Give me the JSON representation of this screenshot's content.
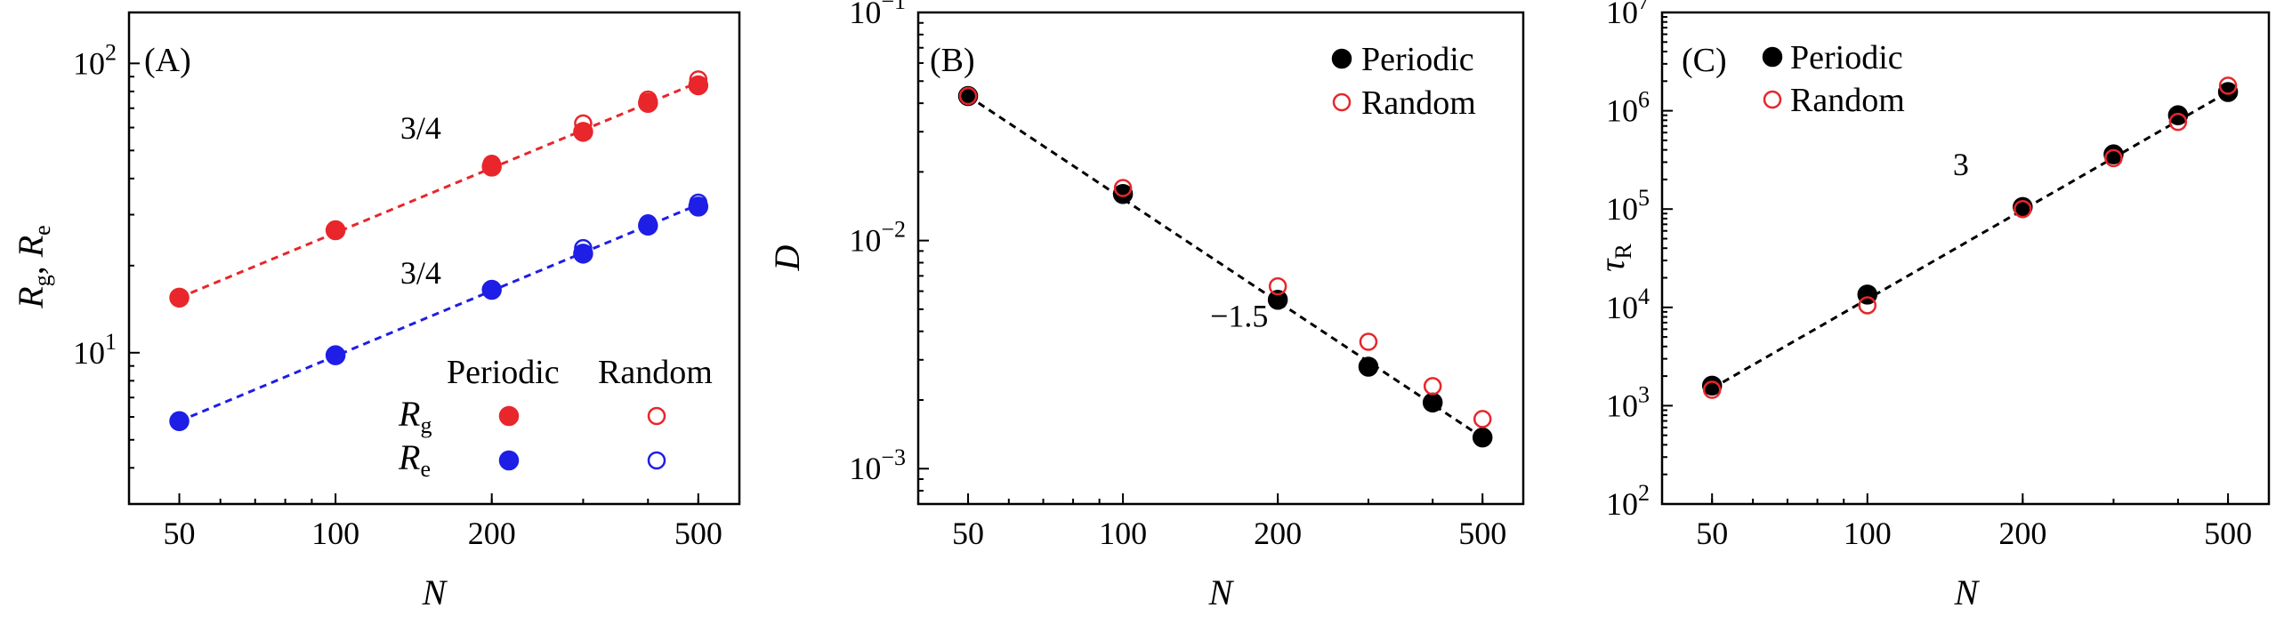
{
  "colors": {
    "red": "#e8262b",
    "blue": "#1e1ee6",
    "black": "#000000"
  },
  "chart_data": [
    {
      "type": "scatter",
      "panel_label": "(A)",
      "xlabel": "N",
      "ylabel_main": "R",
      "ylabel_sub1": "g",
      "ylabel_sep": ", ",
      "ylabel_sub2": "e",
      "xscale": "log",
      "yscale": "log",
      "xlim": [
        40,
        600
      ],
      "ylim": [
        3,
        150
      ],
      "xticks": [
        {
          "v": 50,
          "label": "50"
        },
        {
          "v": 100,
          "label": "100"
        },
        {
          "v": 200,
          "label": "200"
        },
        {
          "v": 500,
          "label": "500"
        }
      ],
      "yticks": [
        {
          "v": 10,
          "base": "10",
          "exp": "1"
        },
        {
          "v": 100,
          "base": "10",
          "exp": "2"
        }
      ],
      "legend": {
        "col_periodic": "Periodic",
        "col_random": "Random",
        "row1_main": "R",
        "row1_sub": "g",
        "row2_main": "R",
        "row2_sub": "e"
      },
      "annotations": [
        {
          "text": "3/4",
          "x": 150,
          "y": 53
        },
        {
          "text": "3/4",
          "x": 150,
          "y": 18.6
        }
      ],
      "fit_lines": [
        {
          "color": "red",
          "x": [
            50,
            500
          ],
          "y": [
            15.5,
            86
          ]
        },
        {
          "color": "blue",
          "x": [
            50,
            500
          ],
          "y": [
            5.8,
            32.5
          ]
        }
      ],
      "series": [
        {
          "name": "Rg Periodic",
          "color": "red",
          "filled": true,
          "x": [
            50,
            100,
            200,
            300,
            400,
            500
          ],
          "y": [
            15.5,
            26.5,
            44,
            58,
            73,
            84
          ]
        },
        {
          "name": "Rg Random",
          "color": "red",
          "filled": false,
          "x": [
            50,
            100,
            200,
            300,
            400,
            500
          ],
          "y": [
            15.5,
            26.5,
            45,
            62,
            75,
            88
          ]
        },
        {
          "name": "Re Periodic",
          "color": "blue",
          "filled": true,
          "x": [
            50,
            100,
            200,
            300,
            400,
            500
          ],
          "y": [
            5.8,
            9.8,
            16.5,
            22,
            27.5,
            32
          ]
        },
        {
          "name": "Re Random",
          "color": "blue",
          "filled": false,
          "x": [
            50,
            100,
            200,
            300,
            400,
            500
          ],
          "y": [
            5.8,
            9.8,
            16.5,
            23,
            28,
            33
          ]
        }
      ]
    },
    {
      "type": "scatter",
      "panel_label": "(B)",
      "xlabel": "N",
      "ylabel_main": "D",
      "xscale": "log",
      "yscale": "log",
      "xlim": [
        40,
        600
      ],
      "ylim": [
        0.0007,
        0.1
      ],
      "xticks": [
        {
          "v": 50,
          "label": "50"
        },
        {
          "v": 100,
          "label": "100"
        },
        {
          "v": 200,
          "label": "200"
        },
        {
          "v": 500,
          "label": "500"
        }
      ],
      "yticks": [
        {
          "v": 0.001,
          "base": "10",
          "exp": "−3"
        },
        {
          "v": 0.01,
          "base": "10",
          "exp": "−2"
        },
        {
          "v": 0.1,
          "base": "10",
          "exp": "−1"
        }
      ],
      "legend": {
        "periodic": "Periodic",
        "random": "Random"
      },
      "annotations": [
        {
          "text": "−1.5",
          "x": 160,
          "y": 0.0042
        }
      ],
      "fit_lines": [
        {
          "color": "black",
          "x": [
            50,
            500
          ],
          "y": [
            0.043,
            0.00137
          ]
        }
      ],
      "series": [
        {
          "name": "Periodic",
          "color": "black",
          "filled": true,
          "x": [
            50,
            100,
            200,
            300,
            400,
            500
          ],
          "y": [
            0.043,
            0.016,
            0.0055,
            0.0028,
            0.00195,
            0.00137
          ]
        },
        {
          "name": "Random",
          "color": "red",
          "filled": false,
          "x": [
            50,
            100,
            200,
            300,
            400,
            500
          ],
          "y": [
            0.043,
            0.017,
            0.0063,
            0.0036,
            0.0023,
            0.00165
          ]
        }
      ]
    },
    {
      "type": "scatter",
      "panel_label": "(C)",
      "xlabel": "N",
      "ylabel_main": "τ",
      "ylabel_sub1": "R",
      "xscale": "log",
      "yscale": "log",
      "xlim": [
        40,
        600
      ],
      "ylim": [
        100,
        10000000
      ],
      "xticks": [
        {
          "v": 50,
          "label": "50"
        },
        {
          "v": 100,
          "label": "100"
        },
        {
          "v": 200,
          "label": "200"
        },
        {
          "v": 500,
          "label": "500"
        }
      ],
      "yticks": [
        {
          "v": 100,
          "base": "10",
          "exp": "2"
        },
        {
          "v": 1000,
          "base": "10",
          "exp": "3"
        },
        {
          "v": 10000,
          "base": "10",
          "exp": "4"
        },
        {
          "v": 100000,
          "base": "10",
          "exp": "5"
        },
        {
          "v": 1000000,
          "base": "10",
          "exp": "6"
        },
        {
          "v": 10000000,
          "base": "10",
          "exp": "7"
        }
      ],
      "legend": {
        "periodic": "Periodic",
        "random": "Random"
      },
      "annotations": [
        {
          "text": "3",
          "x": 165,
          "y": 180000
        }
      ],
      "fit_lines": [
        {
          "color": "black",
          "x": [
            50,
            500
          ],
          "y": [
            1500,
            1550000
          ]
        }
      ],
      "series": [
        {
          "name": "Periodic",
          "color": "black",
          "filled": true,
          "x": [
            50,
            100,
            200,
            300,
            400,
            500
          ],
          "y": [
            1600,
            13500,
            105000,
            360000,
            900000,
            1550000
          ]
        },
        {
          "name": "Random",
          "color": "red",
          "filled": false,
          "x": [
            50,
            100,
            200,
            300,
            400,
            500
          ],
          "y": [
            1450,
            10500,
            100000,
            330000,
            770000,
            1800000
          ]
        }
      ]
    }
  ]
}
